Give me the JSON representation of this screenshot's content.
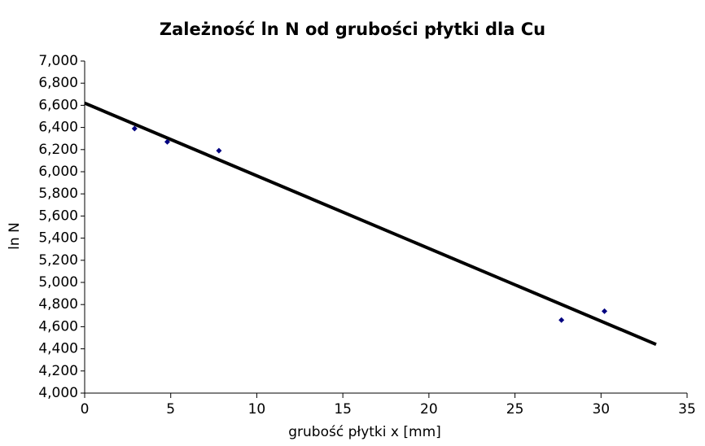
{
  "chart_data": {
    "type": "scatter",
    "title": "Zależność ln N od grubości płytki dla Cu",
    "xlabel": "grubość płytki x [mm]",
    "ylabel": "ln N",
    "series": [
      {
        "color": "#000080",
        "x": [
          2.9,
          4.8,
          7.8,
          27.7,
          30.2
        ],
        "values": [
          6.39,
          6.27,
          6.19,
          4.66,
          4.74
        ]
      }
    ],
    "trendline": {
      "color": "#000000",
      "x": [
        0,
        33.2
      ],
      "values": [
        6.62,
        4.44
      ]
    },
    "xlim": [
      0,
      35
    ],
    "xticks": [
      0,
      5,
      10,
      15,
      20,
      25,
      30,
      35
    ],
    "ylim": [
      4,
      7
    ],
    "yticks": [
      {
        "value": 4,
        "label": "4,000"
      },
      {
        "value": 4.2,
        "label": "4,200"
      },
      {
        "value": 4.4,
        "label": "4,400"
      },
      {
        "value": 4.6,
        "label": "4,600"
      },
      {
        "value": 4.8,
        "label": "4,800"
      },
      {
        "value": 5,
        "label": "5,000"
      },
      {
        "value": 5.2,
        "label": "5,200"
      },
      {
        "value": 5.4,
        "label": "5,400"
      },
      {
        "value": 5.6,
        "label": "5,600"
      },
      {
        "value": 5.8,
        "label": "5,800"
      },
      {
        "value": 6,
        "label": "6,000"
      },
      {
        "value": 6.2,
        "label": "6,200"
      },
      {
        "value": 6.4,
        "label": "6,400"
      },
      {
        "value": 6.6,
        "label": "6,600"
      },
      {
        "value": 6.8,
        "label": "6,800"
      },
      {
        "value": 7,
        "label": "7,000"
      }
    ],
    "grid": false
  }
}
